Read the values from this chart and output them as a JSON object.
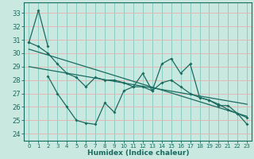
{
  "xlabel": "Humidex (Indice chaleur)",
  "xlim": [
    -0.5,
    23.5
  ],
  "ylim": [
    23.5,
    33.8
  ],
  "yticks": [
    24,
    25,
    26,
    27,
    28,
    29,
    30,
    31,
    32,
    33
  ],
  "xticks": [
    0,
    1,
    2,
    3,
    4,
    5,
    6,
    7,
    8,
    9,
    10,
    11,
    12,
    13,
    14,
    15,
    16,
    17,
    18,
    19,
    20,
    21,
    22,
    23
  ],
  "bg_color": "#c8e8e0",
  "line_color": "#1a6b60",
  "grid_h_color": "#e8b0b0",
  "grid_v_color": "#80c8c0",
  "line1_x": [
    0,
    1,
    2
  ],
  "line1_y": [
    30.8,
    33.2,
    30.5
  ],
  "line2_x": [
    2,
    3,
    4,
    5,
    6,
    7,
    8,
    9,
    10,
    11,
    12,
    13,
    14,
    15,
    16,
    17,
    18,
    19,
    20,
    21,
    22,
    23
  ],
  "line2_y": [
    28.3,
    27.0,
    26.0,
    25.0,
    24.8,
    24.7,
    26.3,
    25.6,
    27.2,
    27.5,
    28.5,
    27.2,
    29.2,
    29.6,
    28.5,
    29.2,
    26.7,
    26.5,
    26.1,
    26.1,
    25.5,
    24.7
  ],
  "line3_x": [
    0,
    1,
    2,
    3,
    4,
    5,
    6,
    7,
    8,
    9,
    10,
    11,
    12,
    13,
    14,
    15,
    16,
    17,
    18,
    19,
    20,
    21,
    22,
    23
  ],
  "line3_y": [
    30.8,
    30.5,
    30.0,
    29.2,
    28.5,
    28.2,
    27.5,
    28.2,
    28.0,
    28.0,
    27.8,
    27.5,
    27.5,
    27.2,
    27.8,
    28.0,
    27.5,
    27.0,
    26.7,
    26.5,
    26.2,
    25.8,
    25.5,
    25.2
  ],
  "trend1_x": [
    0,
    23
  ],
  "trend1_y": [
    30.3,
    25.3
  ],
  "trend2_x": [
    0,
    23
  ],
  "trend2_y": [
    29.0,
    26.2
  ]
}
